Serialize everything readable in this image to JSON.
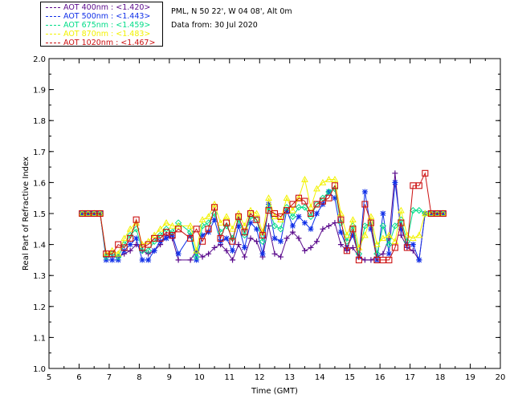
{
  "legend": [
    {
      "label": "AOT  400nm : <1.420>",
      "color": "#5a0a8c"
    },
    {
      "label": "AOT  500nm : <1.443>",
      "color": "#1030e8"
    },
    {
      "label": "AOT  675nm : <1.459>",
      "color": "#00dd88"
    },
    {
      "label": "AOT  870nm : <1.483>",
      "color": "#f2f200"
    },
    {
      "label": "AOT 1020nm : <1.467>",
      "color": "#cc1010"
    }
  ],
  "info": {
    "site": "PML, N 50 22', W 04 08', Alt 0m",
    "date": "Data from: 30 Jul 2020"
  },
  "chart_data": {
    "type": "scatter",
    "xlabel": "Time (GMT)",
    "ylabel": "Real Part of Refractive Index",
    "xlim": [
      5,
      20
    ],
    "ylim": [
      1.0,
      2.0
    ],
    "x_ticks": [
      "5",
      "6",
      "7",
      "8",
      "9",
      "10",
      "11",
      "12",
      "13",
      "14",
      "15",
      "16",
      "17",
      "18",
      "19",
      "20"
    ],
    "y_ticks": [
      "1.0",
      "1.1",
      "1.2",
      "1.3",
      "1.4",
      "1.5",
      "1.6",
      "1.7",
      "1.8",
      "1.9",
      "2.0"
    ],
    "series": [
      {
        "name": "AOT  400nm : <1.420>",
        "color": "#5a0a8c",
        "marker": "plus",
        "x": [
          6.1,
          6.3,
          6.5,
          6.7,
          6.9,
          7.1,
          7.3,
          7.5,
          7.7,
          7.9,
          8.1,
          8.3,
          8.5,
          8.7,
          8.9,
          9.1,
          9.3,
          9.7,
          9.9,
          10.1,
          10.3,
          10.5,
          10.7,
          10.9,
          11.1,
          11.3,
          11.5,
          11.7,
          11.9,
          12.1,
          12.3,
          12.5,
          12.7,
          12.9,
          13.1,
          13.3,
          13.5,
          13.7,
          13.9,
          14.1,
          14.3,
          14.5,
          14.7,
          14.9,
          15.1,
          15.3,
          15.5,
          15.7,
          15.9,
          16.1,
          16.3,
          16.5,
          16.7,
          16.9,
          17.1,
          17.3,
          17.5,
          17.7,
          17.9,
          18.1
        ],
        "y": [
          1.5,
          1.5,
          1.5,
          1.5,
          1.36,
          1.36,
          1.36,
          1.37,
          1.38,
          1.4,
          1.38,
          1.37,
          1.38,
          1.4,
          1.43,
          1.42,
          1.35,
          1.35,
          1.38,
          1.36,
          1.37,
          1.39,
          1.4,
          1.38,
          1.35,
          1.4,
          1.36,
          1.42,
          1.41,
          1.36,
          1.46,
          1.37,
          1.36,
          1.42,
          1.44,
          1.42,
          1.38,
          1.39,
          1.41,
          1.45,
          1.46,
          1.47,
          1.4,
          1.38,
          1.39,
          1.36,
          1.35,
          1.35,
          1.36,
          1.37,
          1.42,
          1.63,
          1.43,
          1.39,
          1.38,
          1.35,
          1.5,
          1.5,
          1.5,
          1.5
        ]
      },
      {
        "name": "AOT  500nm : <1.443>",
        "color": "#1030e8",
        "marker": "star",
        "x": [
          6.1,
          6.3,
          6.5,
          6.7,
          6.9,
          7.1,
          7.3,
          7.5,
          7.7,
          7.9,
          8.1,
          8.3,
          8.5,
          8.7,
          8.9,
          9.1,
          9.3,
          9.7,
          9.9,
          10.1,
          10.3,
          10.5,
          10.7,
          10.9,
          11.1,
          11.3,
          11.5,
          11.7,
          11.9,
          12.1,
          12.3,
          12.5,
          12.7,
          12.9,
          13.1,
          13.3,
          13.5,
          13.7,
          13.9,
          14.1,
          14.3,
          14.5,
          14.7,
          14.9,
          15.1,
          15.3,
          15.5,
          15.7,
          15.9,
          16.1,
          16.3,
          16.5,
          16.7,
          16.9,
          17.1,
          17.3,
          17.5,
          17.7,
          17.9,
          18.1
        ],
        "y": [
          1.5,
          1.5,
          1.5,
          1.5,
          1.35,
          1.35,
          1.35,
          1.38,
          1.4,
          1.42,
          1.35,
          1.35,
          1.38,
          1.41,
          1.42,
          1.43,
          1.37,
          1.43,
          1.35,
          1.43,
          1.44,
          1.48,
          1.41,
          1.42,
          1.38,
          1.46,
          1.39,
          1.47,
          1.45,
          1.37,
          1.53,
          1.42,
          1.41,
          1.51,
          1.46,
          1.49,
          1.47,
          1.45,
          1.5,
          1.53,
          1.57,
          1.55,
          1.44,
          1.39,
          1.43,
          1.36,
          1.57,
          1.45,
          1.35,
          1.5,
          1.37,
          1.6,
          1.45,
          1.4,
          1.4,
          1.35,
          1.5,
          1.5,
          1.5,
          1.5
        ]
      },
      {
        "name": "AOT  675nm : <1.459>",
        "color": "#00dd88",
        "marker": "diamond",
        "x": [
          6.1,
          6.3,
          6.5,
          6.7,
          6.9,
          7.1,
          7.3,
          7.5,
          7.7,
          7.9,
          8.1,
          8.3,
          8.5,
          8.7,
          8.9,
          9.1,
          9.3,
          9.7,
          9.9,
          10.1,
          10.3,
          10.5,
          10.7,
          10.9,
          11.1,
          11.3,
          11.5,
          11.7,
          11.9,
          12.1,
          12.3,
          12.5,
          12.7,
          12.9,
          13.1,
          13.3,
          13.5,
          13.7,
          13.9,
          14.1,
          14.3,
          14.5,
          14.7,
          14.9,
          15.1,
          15.3,
          15.5,
          15.7,
          15.9,
          16.1,
          16.3,
          16.5,
          16.7,
          16.9,
          17.1,
          17.3,
          17.5,
          17.7,
          17.9,
          18.1
        ],
        "y": [
          1.5,
          1.5,
          1.5,
          1.5,
          1.36,
          1.37,
          1.36,
          1.4,
          1.43,
          1.45,
          1.38,
          1.38,
          1.41,
          1.43,
          1.45,
          1.44,
          1.47,
          1.44,
          1.36,
          1.46,
          1.47,
          1.5,
          1.44,
          1.46,
          1.42,
          1.48,
          1.43,
          1.49,
          1.48,
          1.41,
          1.52,
          1.46,
          1.45,
          1.52,
          1.49,
          1.52,
          1.52,
          1.49,
          1.53,
          1.55,
          1.57,
          1.58,
          1.47,
          1.41,
          1.46,
          1.37,
          1.46,
          1.47,
          1.37,
          1.46,
          1.4,
          1.46,
          1.48,
          1.41,
          1.51,
          1.51,
          1.5,
          1.5,
          1.5,
          1.5
        ]
      },
      {
        "name": "AOT  870nm : <1.483>",
        "color": "#f2f200",
        "marker": "triangle",
        "x": [
          6.1,
          6.3,
          6.5,
          6.7,
          6.9,
          7.1,
          7.3,
          7.5,
          7.7,
          7.9,
          8.1,
          8.3,
          8.5,
          8.7,
          8.9,
          9.1,
          9.3,
          9.7,
          9.9,
          10.1,
          10.3,
          10.5,
          10.7,
          10.9,
          11.1,
          11.3,
          11.5,
          11.7,
          11.9,
          12.1,
          12.3,
          12.5,
          12.7,
          12.9,
          13.1,
          13.3,
          13.5,
          13.7,
          13.9,
          14.1,
          14.3,
          14.5,
          14.7,
          14.9,
          15.1,
          15.3,
          15.5,
          15.7,
          15.9,
          16.1,
          16.3,
          16.5,
          16.7,
          16.9,
          17.1,
          17.3,
          17.5,
          17.7,
          17.9,
          18.1
        ],
        "y": [
          1.5,
          1.5,
          1.5,
          1.5,
          1.37,
          1.38,
          1.37,
          1.42,
          1.45,
          1.47,
          1.4,
          1.41,
          1.43,
          1.45,
          1.47,
          1.46,
          1.46,
          1.46,
          1.38,
          1.48,
          1.49,
          1.53,
          1.47,
          1.49,
          1.45,
          1.5,
          1.46,
          1.51,
          1.5,
          1.44,
          1.55,
          1.49,
          1.48,
          1.55,
          1.51,
          1.55,
          1.61,
          1.52,
          1.58,
          1.6,
          1.61,
          1.61,
          1.5,
          1.43,
          1.48,
          1.39,
          1.43,
          1.49,
          1.4,
          1.42,
          1.43,
          1.41,
          1.51,
          1.43,
          1.42,
          1.43,
          1.5,
          1.5,
          1.5,
          1.5
        ]
      },
      {
        "name": "AOT 1020nm : <1.467>",
        "color": "#cc1010",
        "marker": "square",
        "x": [
          6.1,
          6.3,
          6.5,
          6.7,
          6.9,
          7.1,
          7.3,
          7.5,
          7.7,
          7.9,
          8.1,
          8.3,
          8.5,
          8.7,
          8.9,
          9.1,
          9.3,
          9.7,
          9.9,
          10.1,
          10.3,
          10.5,
          10.7,
          10.9,
          11.1,
          11.3,
          11.5,
          11.7,
          11.9,
          12.1,
          12.3,
          12.5,
          12.7,
          12.9,
          13.1,
          13.3,
          13.5,
          13.7,
          13.9,
          14.1,
          14.3,
          14.5,
          14.7,
          14.9,
          15.1,
          15.3,
          15.5,
          15.7,
          15.9,
          16.1,
          16.3,
          16.5,
          16.7,
          16.9,
          17.1,
          17.3,
          17.5,
          17.7,
          17.9,
          18.1
        ],
        "y": [
          1.5,
          1.5,
          1.5,
          1.5,
          1.37,
          1.37,
          1.4,
          1.39,
          1.42,
          1.48,
          1.39,
          1.4,
          1.42,
          1.42,
          1.44,
          1.43,
          1.45,
          1.42,
          1.45,
          1.41,
          1.45,
          1.52,
          1.42,
          1.47,
          1.41,
          1.49,
          1.44,
          1.5,
          1.48,
          1.43,
          1.51,
          1.5,
          1.49,
          1.51,
          1.53,
          1.55,
          1.54,
          1.5,
          1.53,
          1.54,
          1.55,
          1.59,
          1.48,
          1.38,
          1.45,
          1.35,
          1.53,
          1.47,
          1.35,
          1.35,
          1.35,
          1.39,
          1.47,
          1.39,
          1.59,
          1.59,
          1.63,
          1.5,
          1.5,
          1.5
        ]
      }
    ]
  }
}
